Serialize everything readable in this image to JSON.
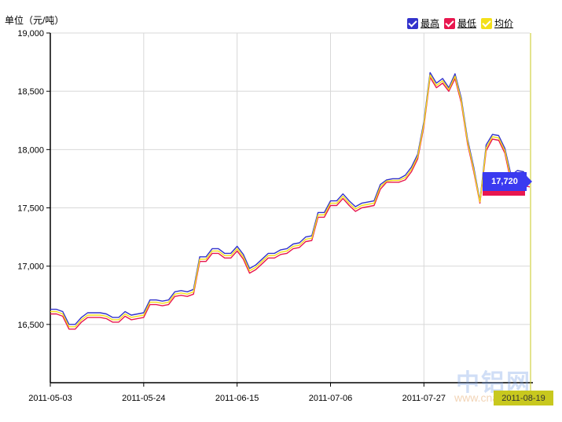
{
  "unit_label": "单位（元/吨）",
  "legend": [
    {
      "label": "最高",
      "color": "#3333cc"
    },
    {
      "label": "最低",
      "color": "#e8174f"
    },
    {
      "label": "均价",
      "color": "#f4e01a"
    }
  ],
  "tooltip_value": "17,720",
  "date_flag": "2011-08-19",
  "watermark": "中铝网",
  "watermark_sub": "www.cnal",
  "chart_data": {
    "type": "line",
    "x_tick_labels": [
      "2011-05-03",
      "2011-05-24",
      "2011-06-15",
      "2011-07-06",
      "2011-07-27"
    ],
    "y_tick_labels": [
      "16,500",
      "17,000",
      "17,500",
      "18,000",
      "18,500",
      "19,000"
    ],
    "ylim": [
      16000,
      19000
    ],
    "grid": true,
    "legend_position": "top-right",
    "series": [
      {
        "name": "最高",
        "color": "#3333cc",
        "values": [
          16630,
          16630,
          16610,
          16500,
          16500,
          16560,
          16600,
          16600,
          16600,
          16590,
          16560,
          16560,
          16610,
          16580,
          16590,
          16600,
          16710,
          16710,
          16700,
          16710,
          16780,
          16790,
          16780,
          16800,
          17080,
          17080,
          17150,
          17150,
          17110,
          17110,
          17170,
          17100,
          16980,
          17010,
          17060,
          17110,
          17110,
          17140,
          17150,
          17190,
          17200,
          17250,
          17260,
          17460,
          17460,
          17560,
          17560,
          17620,
          17560,
          17510,
          17540,
          17550,
          17560,
          17700,
          17740,
          17750,
          17750,
          17780,
          17850,
          17960,
          18240,
          18660,
          18570,
          18610,
          18530,
          18650,
          18440,
          18090,
          17850,
          17560,
          18040,
          18130,
          18120,
          18010,
          17780,
          17820,
          17810,
          17720
        ]
      },
      {
        "name": "最低",
        "color": "#e8174f",
        "values": [
          16590,
          16590,
          16570,
          16460,
          16460,
          16520,
          16560,
          16560,
          16560,
          16550,
          16520,
          16520,
          16570,
          16540,
          16550,
          16560,
          16670,
          16670,
          16660,
          16670,
          16740,
          16750,
          16740,
          16760,
          17040,
          17040,
          17110,
          17110,
          17070,
          17070,
          17130,
          17060,
          16940,
          16970,
          17020,
          17070,
          17070,
          17100,
          17110,
          17150,
          17160,
          17210,
          17220,
          17420,
          17420,
          17520,
          17520,
          17580,
          17520,
          17470,
          17500,
          17510,
          17520,
          17660,
          17720,
          17720,
          17720,
          17740,
          17810,
          17920,
          18200,
          18620,
          18530,
          18570,
          18500,
          18610,
          18400,
          18050,
          17810,
          17540,
          17990,
          18090,
          18080,
          17970,
          17720,
          17700,
          17690,
          17680
        ]
      },
      {
        "name": "均价",
        "color": "#f4e01a",
        "values": [
          16610,
          16610,
          16590,
          16480,
          16480,
          16540,
          16580,
          16580,
          16580,
          16570,
          16540,
          16540,
          16590,
          16560,
          16570,
          16580,
          16690,
          16690,
          16680,
          16690,
          16760,
          16770,
          16760,
          16780,
          17060,
          17060,
          17130,
          17130,
          17090,
          17090,
          17150,
          17080,
          16960,
          16990,
          17040,
          17090,
          17090,
          17120,
          17130,
          17170,
          17180,
          17230,
          17240,
          17440,
          17440,
          17540,
          17540,
          17600,
          17540,
          17490,
          17520,
          17530,
          17540,
          17680,
          17730,
          17735,
          17735,
          17760,
          17830,
          17940,
          18220,
          18640,
          18550,
          18590,
          18515,
          18630,
          18420,
          18070,
          17830,
          17550,
          18015,
          18110,
          18100,
          17990,
          17750,
          17760,
          17750,
          17700
        ]
      }
    ]
  }
}
